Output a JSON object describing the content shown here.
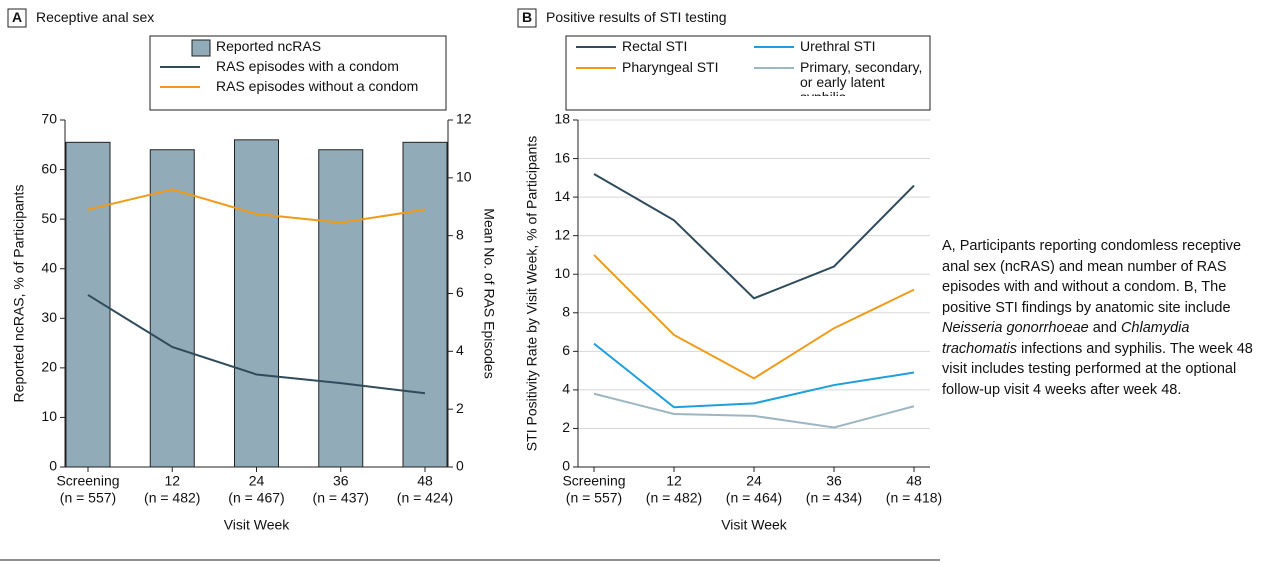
{
  "figure": {
    "caption": [
      {
        "text": "A, Participants reporting condomless receptive anal sex (ncRAS) and mean number of RAS episodes with and without a condom. B, The positive STI findings by anatomic site include ",
        "italic": false
      },
      {
        "text": "Neisseria gonorrhoeae",
        "italic": true
      },
      {
        "text": " and ",
        "italic": false
      },
      {
        "text": "Chlamydia trachomatis",
        "italic": true
      },
      {
        "text": " infections and syphilis. The week 48 visit includes testing performed at the optional follow-up visit 4 weeks after week 48.",
        "italic": false
      }
    ]
  },
  "chart_data": [
    {
      "type": "bar",
      "panel_label": "A",
      "title": "Receptive anal sex",
      "categories": [
        "Screening",
        "12",
        "24",
        "36",
        "48"
      ],
      "category_notes": [
        "(n = 557)",
        "(n = 482)",
        "(n = 467)",
        "(n = 437)",
        "(n = 424)"
      ],
      "x_label": "Visit Week",
      "y_label": "Reported ncRAS, % of Participants",
      "y2_label": "Mean No. of RAS Episodes",
      "ylim": [
        0,
        70
      ],
      "yticks": [
        0,
        10,
        20,
        30,
        40,
        50,
        60,
        70
      ],
      "y2lim": [
        0,
        12
      ],
      "y2ticks": [
        0,
        2,
        4,
        6,
        8,
        10,
        12
      ],
      "grid": false,
      "series": [
        {
          "name": "Reported ncRAS",
          "type": "bar",
          "color": "#92abb9",
          "values": [
            65.5,
            64,
            66,
            64,
            65.5
          ]
        },
        {
          "name": "RAS episodes with a condom",
          "type": "line",
          "axis": "y2",
          "color": "#2f4b5c",
          "values": [
            5.95,
            4.15,
            3.2,
            2.9,
            2.55
          ]
        },
        {
          "name": "RAS episodes without a condom",
          "type": "line",
          "axis": "y2",
          "color": "#f09a1a",
          "values": [
            8.9,
            9.6,
            8.75,
            8.45,
            8.9
          ]
        }
      ]
    },
    {
      "type": "line",
      "panel_label": "B",
      "title": "Positive results of STI testing",
      "categories": [
        "Screening",
        "12",
        "24",
        "36",
        "48"
      ],
      "category_notes": [
        "(n = 557)",
        "(n = 482)",
        "(n = 464)",
        "(n = 434)",
        "(n = 418)"
      ],
      "x_label": "Visit Week",
      "y_label": "STI Positivity Rate by Visit Week, % of Participants",
      "ylim": [
        0,
        18
      ],
      "yticks": [
        0,
        2,
        4,
        6,
        8,
        10,
        12,
        14,
        16,
        18
      ],
      "grid": true,
      "series": [
        {
          "name": "Rectal STI",
          "color": "#2f4b5c",
          "values": [
            15.2,
            12.8,
            8.75,
            10.4,
            14.6
          ]
        },
        {
          "name": "Urethral STI",
          "color": "#1c9fdc",
          "values": [
            6.4,
            3.1,
            3.3,
            4.25,
            4.9
          ]
        },
        {
          "name": "Pharyngeal STI",
          "color": "#f09a1a",
          "values": [
            11,
            6.85,
            4.6,
            7.2,
            9.2
          ]
        },
        {
          "name": "Primary, secondary, or early latent syphilis",
          "color": "#9cb6c2",
          "values": [
            3.8,
            2.75,
            2.65,
            2.05,
            3.15
          ]
        }
      ]
    }
  ]
}
